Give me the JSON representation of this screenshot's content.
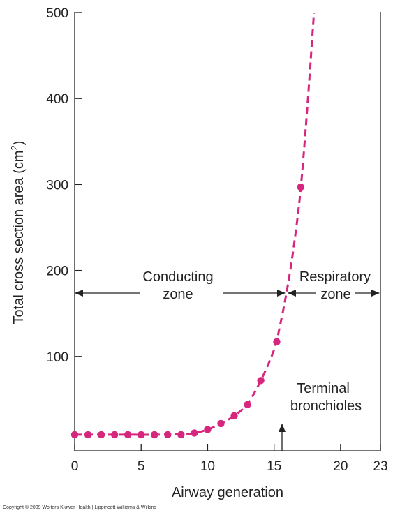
{
  "chart_data": {
    "type": "line",
    "title": "",
    "xlabel": "Airway generation",
    "ylabel_main": "Total cross section area (cm",
    "ylabel_sup": "2",
    "ylabel_close": ")",
    "xlim": [
      0,
      23
    ],
    "ylim": [
      0,
      500
    ],
    "xticks": [
      0,
      5,
      10,
      15,
      20,
      23
    ],
    "yticks": [
      100,
      200,
      300,
      400,
      500
    ],
    "grid": false,
    "color": "#d6267e",
    "line_style": "dashed",
    "series": [
      {
        "x": [
          0,
          1,
          2,
          3,
          4,
          5,
          6,
          7,
          8,
          9,
          10,
          11,
          12,
          13,
          14,
          15.2,
          17
        ],
        "y": [
          9,
          9,
          9,
          9,
          9,
          9,
          9,
          9,
          9,
          11,
          15,
          22,
          31,
          44,
          72,
          117,
          297
        ]
      }
    ],
    "curve": {
      "x": [
        0,
        2,
        4,
        6,
        8,
        9,
        10,
        11,
        12,
        13,
        14,
        15,
        15.5,
        16,
        16.5,
        17,
        17.5,
        18
      ],
      "y": [
        9,
        9,
        9,
        9,
        9.5,
        11,
        15,
        22,
        31,
        45,
        72,
        108,
        140,
        180,
        230,
        295,
        390,
        500
      ]
    },
    "annotations": {
      "conducting_line1": "Conducting",
      "conducting_line2": "zone",
      "respiratory_line1": "Respiratory",
      "respiratory_line2": "zone",
      "terminal_line1": "Terminal",
      "terminal_line2": "bronchioles"
    },
    "copyright": "Copyright © 2009 Wolters Kluwer Health | Lippincott Williams & Wilkins"
  }
}
